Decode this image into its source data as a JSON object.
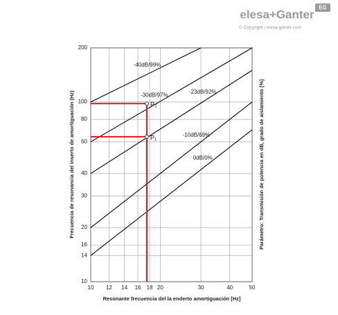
{
  "header": {
    "brand": "elesa+Ganter",
    "copyright": "© Copyright | elesa-ganter.com",
    "badge": "EG"
  },
  "chart_data": {
    "type": "line",
    "x_label": "Resonante frecuencia del la enderto amortiguación [Hz]",
    "y_label": "Frecuencia de resonancia del inserto de amortiguación (Hz)",
    "y2_label": "Parámetro: Transmisión de potencia en dB, grado de aislamiento [%]",
    "xscale": "log",
    "yscale": "log",
    "grid": true,
    "xlim": [
      10,
      50
    ],
    "ylim": [
      10,
      200
    ],
    "xticks": [
      10,
      12,
      14,
      16,
      18,
      20,
      30,
      40,
      50
    ],
    "yticks": [
      10,
      14,
      16,
      20,
      30,
      40,
      60,
      80,
      100,
      200
    ],
    "series": [
      {
        "name": "-40dB/99%",
        "color": "#000000",
        "x": [
          10,
          30
        ],
        "values": [
          100,
          200
        ]
      },
      {
        "name": "-30dB/97%",
        "color": "#000000",
        "x": [
          10,
          50
        ],
        "values": [
          60,
          200
        ]
      },
      {
        "name": "-23dB/92%",
        "color": "#000000",
        "x": [
          10,
          50
        ],
        "values": [
          40,
          150
        ]
      },
      {
        "name": "-10dB/69%",
        "color": "#000000",
        "x": [
          10,
          50
        ],
        "values": [
          20,
          100
        ]
      },
      {
        "name": "0dB/0%",
        "color": "#000000",
        "x": [
          10,
          50
        ],
        "values": [
          14,
          70
        ]
      }
    ],
    "points": [
      {
        "label": "P₂",
        "x": 17.5,
        "y": 98
      },
      {
        "label": "P₁",
        "x": 17.5,
        "y": 64
      }
    ],
    "guide_color": "#e8141b"
  }
}
